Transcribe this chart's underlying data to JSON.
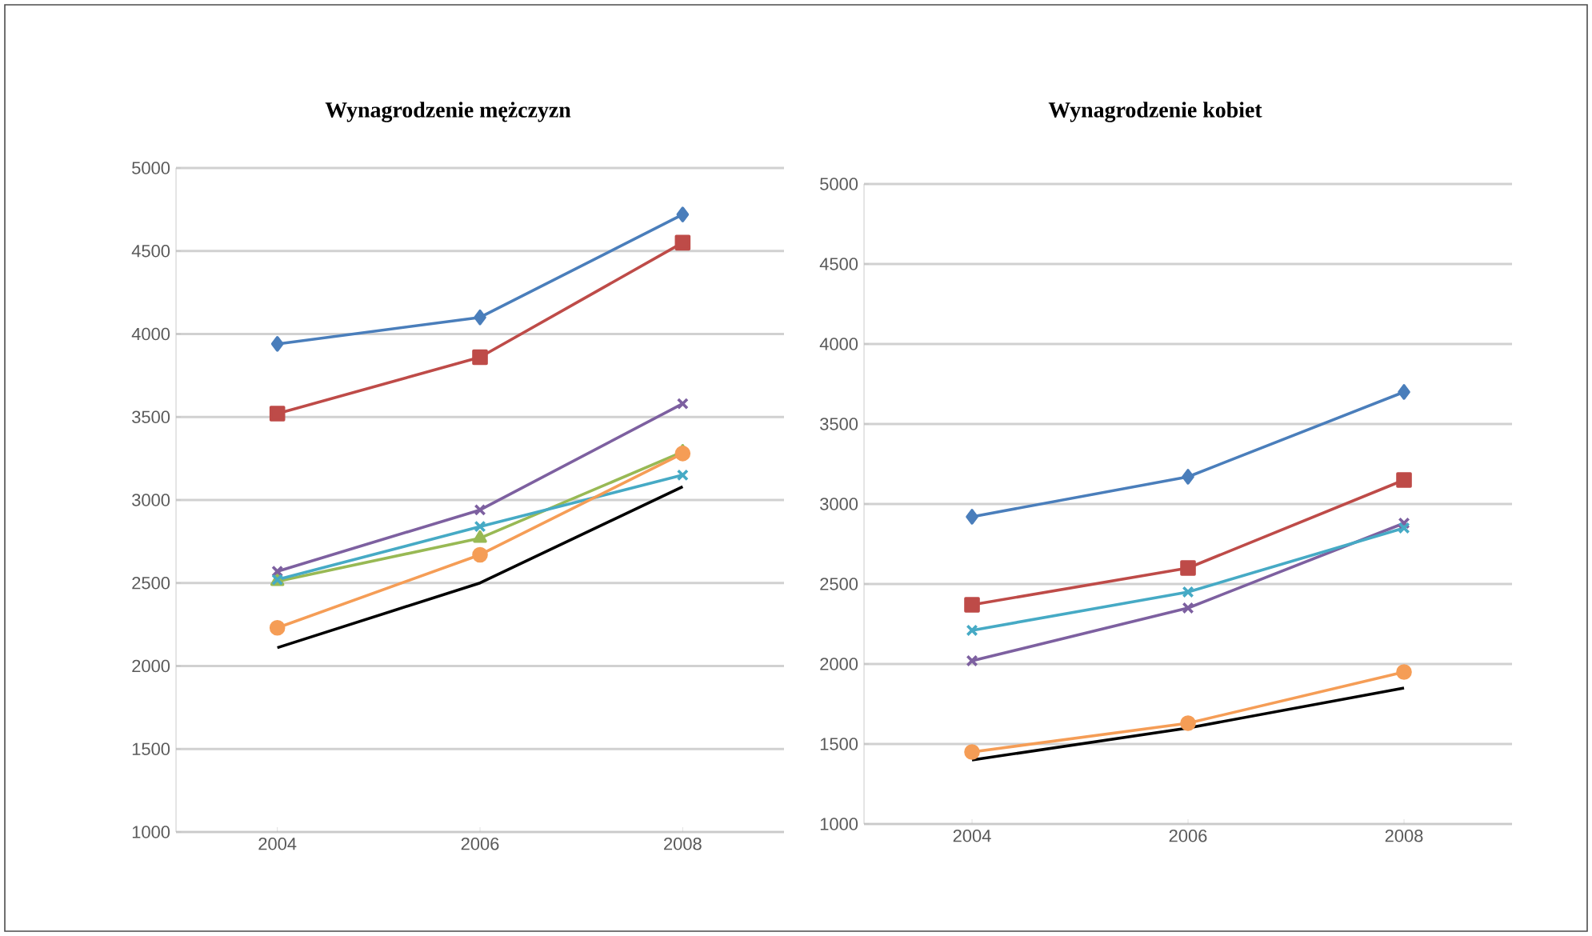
{
  "chart_data": [
    {
      "type": "line",
      "title": "Wynagrodzenie mężczyzn",
      "categories": [
        "2004",
        "2006",
        "2008"
      ],
      "ylim": [
        1000,
        5000
      ],
      "yticks": [
        1000,
        1500,
        2000,
        2500,
        3000,
        3500,
        4000,
        4500,
        5000
      ],
      "grid": "y",
      "series": [
        {
          "color": "#4a7ebb",
          "marker": "diamond",
          "values": [
            3940,
            4100,
            4720
          ]
        },
        {
          "color": "#be4b48",
          "marker": "square",
          "values": [
            3520,
            3860,
            4550
          ]
        },
        {
          "color": "#98b954",
          "marker": "triangle",
          "values": [
            2510,
            2770,
            3290
          ]
        },
        {
          "color": "#7d60a0",
          "marker": "cross",
          "values": [
            2570,
            2940,
            3580
          ]
        },
        {
          "color": "#46aac5",
          "marker": "cross",
          "values": [
            2520,
            2840,
            3150
          ]
        },
        {
          "color": "#f59d56",
          "marker": "circle",
          "values": [
            2230,
            2670,
            3280
          ]
        },
        {
          "color": "#000000",
          "marker": "none",
          "values": [
            2110,
            2500,
            3080
          ]
        }
      ]
    },
    {
      "type": "line",
      "title": "Wynagrodzenie kobiet",
      "categories": [
        "2004",
        "2006",
        "2008"
      ],
      "ylim": [
        1000,
        5000
      ],
      "yticks": [
        1000,
        1500,
        2000,
        2500,
        3000,
        3500,
        4000,
        4500,
        5000
      ],
      "grid": "y",
      "series": [
        {
          "color": "#4a7ebb",
          "marker": "diamond",
          "values": [
            2920,
            3170,
            3700
          ]
        },
        {
          "color": "#be4b48",
          "marker": "square",
          "values": [
            2370,
            2600,
            3150
          ]
        },
        {
          "color": "#7d60a0",
          "marker": "cross",
          "values": [
            2020,
            2350,
            2880
          ]
        },
        {
          "color": "#46aac5",
          "marker": "cross",
          "values": [
            2210,
            2450,
            2850
          ]
        },
        {
          "color": "#f59d56",
          "marker": "circle",
          "values": [
            1450,
            1630,
            1950
          ]
        },
        {
          "color": "#000000",
          "marker": "none",
          "values": [
            1400,
            1600,
            1850
          ]
        }
      ]
    }
  ]
}
